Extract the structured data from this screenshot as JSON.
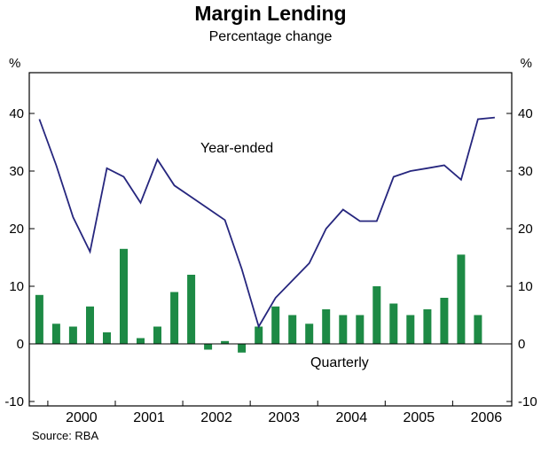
{
  "chart_data": {
    "type": "combo",
    "title": "Margin Lending",
    "subtitle": "Percentage change",
    "source": "Source: RBA",
    "ylabel_left": "%",
    "ylabel_right": "%",
    "ylim": [
      -10,
      47
    ],
    "y_ticks": [
      -10,
      0,
      10,
      20,
      30,
      40
    ],
    "x_year_labels": [
      "2000",
      "2001",
      "2002",
      "2003",
      "2004",
      "2005",
      "2006"
    ],
    "grid": false,
    "zero_line": true,
    "categories": [
      "1999 Q4",
      "2000 Q1",
      "2000 Q2",
      "2000 Q3",
      "2000 Q4",
      "2001 Q1",
      "2001 Q2",
      "2001 Q3",
      "2001 Q4",
      "2002 Q1",
      "2002 Q2",
      "2002 Q3",
      "2002 Q4",
      "2003 Q1",
      "2003 Q2",
      "2003 Q3",
      "2003 Q4",
      "2004 Q1",
      "2004 Q2",
      "2004 Q3",
      "2004 Q4",
      "2005 Q1",
      "2005 Q2",
      "2005 Q3",
      "2005 Q4",
      "2006 Q1",
      "2006 Q2",
      "2006 Q3"
    ],
    "series": [
      {
        "name": "Year-ended",
        "type": "line",
        "color": "#26267e",
        "values": [
          39,
          31,
          22,
          16,
          30.5,
          29,
          24.5,
          32,
          27.5,
          25.5,
          23.5,
          21.5,
          13,
          3,
          8,
          11,
          14,
          20,
          23.3,
          21.3,
          21.3,
          29,
          30,
          30.5,
          31,
          28.5,
          39,
          39.3
        ]
      },
      {
        "name": "Quarterly",
        "type": "bar",
        "color": "#1d8a45",
        "values": [
          8.5,
          3.5,
          3,
          6.5,
          2,
          16.5,
          1,
          3,
          9,
          12,
          -1,
          0.5,
          -1.5,
          3,
          6.5,
          5,
          3.5,
          6,
          5,
          5,
          10,
          7,
          5,
          6,
          8,
          15.5,
          5,
          null
        ]
      }
    ]
  }
}
